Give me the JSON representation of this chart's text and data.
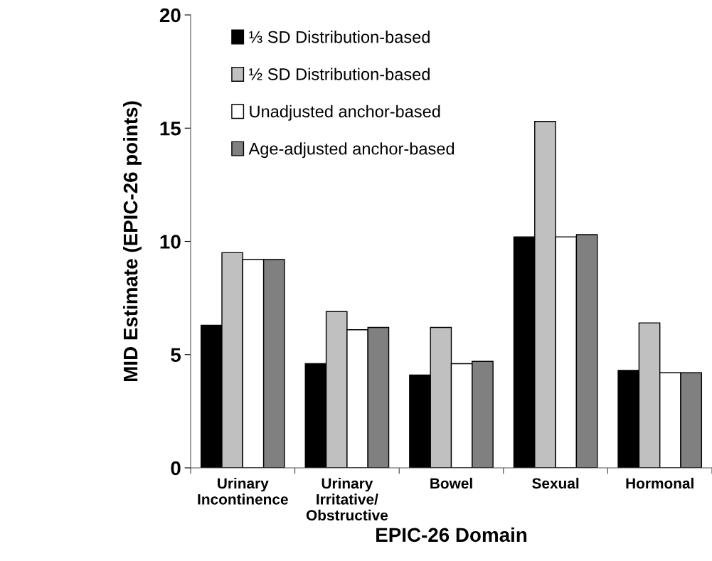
{
  "chart_data": {
    "type": "bar",
    "xlabel": "EPIC-26 Domain",
    "ylabel": "MID Estimate (EPIC-26 points)",
    "categories": [
      "Urinary\nIncontinence",
      "Urinary\nIrritative/\nObstructive",
      "Bowel",
      "Sexual",
      "Hormonal"
    ],
    "series": [
      {
        "name": "⅓ SD Distribution-based",
        "color": "#000000",
        "values": [
          6.3,
          4.6,
          4.1,
          10.2,
          4.3
        ]
      },
      {
        "name": "½ SD Distribution-based",
        "color": "#c0c0c0",
        "values": [
          9.5,
          6.9,
          6.2,
          15.3,
          6.4
        ]
      },
      {
        "name": "Unadjusted anchor-based",
        "color": "#ffffff",
        "values": [
          9.2,
          6.1,
          4.6,
          10.2,
          4.2
        ]
      },
      {
        "name": "Age-adjusted anchor-based",
        "color": "#808080",
        "values": [
          9.2,
          6.2,
          4.7,
          10.3,
          4.2
        ]
      }
    ],
    "ylim": [
      0,
      20
    ],
    "yticks": [
      0,
      5,
      10,
      15,
      20
    ],
    "grid": false,
    "legend": "top left"
  }
}
